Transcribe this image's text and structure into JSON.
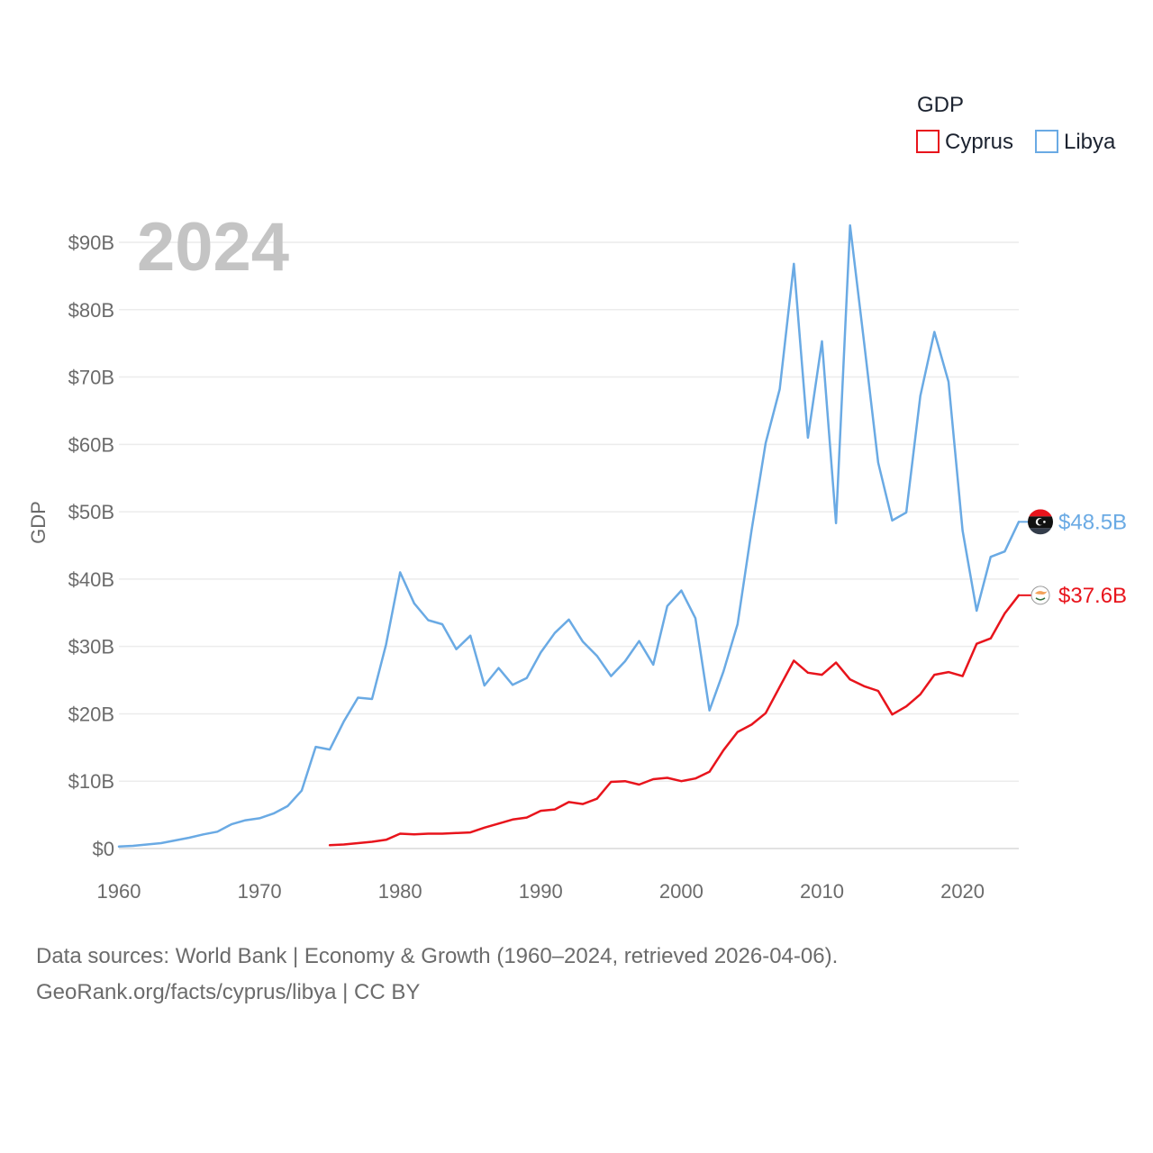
{
  "chart_data": {
    "type": "line",
    "legend": {
      "title": "GDP",
      "position": "top-right"
    },
    "year_label": "2024",
    "ylabel": "GDP",
    "xlim": [
      1960,
      2024
    ],
    "ylim": [
      0,
      90
    ],
    "x_ticks": [
      1960,
      1970,
      1980,
      1990,
      2000,
      2010,
      2020
    ],
    "y_ticks": [
      {
        "value": 0,
        "label": "$0"
      },
      {
        "value": 10,
        "label": "$10B"
      },
      {
        "value": 20,
        "label": "$20B"
      },
      {
        "value": 30,
        "label": "$30B"
      },
      {
        "value": 40,
        "label": "$40B"
      },
      {
        "value": 50,
        "label": "$50B"
      },
      {
        "value": 60,
        "label": "$60B"
      },
      {
        "value": 70,
        "label": "$70B"
      },
      {
        "value": 80,
        "label": "$80B"
      },
      {
        "value": 90,
        "label": "$90B"
      }
    ],
    "series": [
      {
        "name": "Libya",
        "color": "#6aaae4",
        "end_label": "$48.5B",
        "start_year": 1960,
        "values": [
          0.3,
          0.4,
          0.6,
          0.8,
          1.2,
          1.6,
          2.1,
          2.5,
          3.6,
          4.2,
          4.5,
          5.2,
          6.3,
          8.6,
          15.1,
          14.7,
          18.9,
          22.4,
          22.2,
          30.3,
          41.0,
          36.4,
          33.9,
          33.3,
          29.6,
          31.6,
          24.2,
          26.8,
          24.3,
          25.3,
          29.1,
          32.0,
          34.0,
          30.7,
          28.6,
          25.6,
          27.8,
          30.8,
          27.3,
          36.0,
          38.3,
          34.2,
          20.5,
          26.3,
          33.3,
          47.3,
          60.2,
          68.2,
          86.8,
          61.0,
          75.3,
          48.3,
          92.5,
          75.1,
          57.3,
          48.7,
          49.9,
          67.2,
          76.7,
          69.3,
          47.2,
          35.3,
          43.3,
          44.1,
          48.5
        ]
      },
      {
        "name": "Cyprus",
        "color": "#e8141c",
        "end_label": "$37.6B",
        "start_year": 1975,
        "values": [
          0.5,
          0.6,
          0.8,
          1.0,
          1.3,
          2.2,
          2.1,
          2.2,
          2.2,
          2.3,
          2.4,
          3.1,
          3.7,
          4.3,
          4.6,
          5.6,
          5.8,
          6.9,
          6.6,
          7.4,
          9.9,
          10.0,
          9.5,
          10.3,
          10.5,
          10.0,
          10.4,
          11.4,
          14.6,
          17.3,
          18.4,
          20.1,
          24.0,
          27.9,
          26.1,
          25.8,
          27.6,
          25.1,
          24.1,
          23.4,
          19.9,
          21.1,
          22.9,
          25.8,
          26.2,
          25.6,
          30.4,
          31.2,
          34.9,
          37.6
        ]
      }
    ]
  },
  "source": {
    "line1": "Data sources: World Bank | Economy & Growth (1960–2024, retrieved 2026-04-06).",
    "line2": "GeoRank.org/facts/cyprus/libya | CC BY"
  }
}
